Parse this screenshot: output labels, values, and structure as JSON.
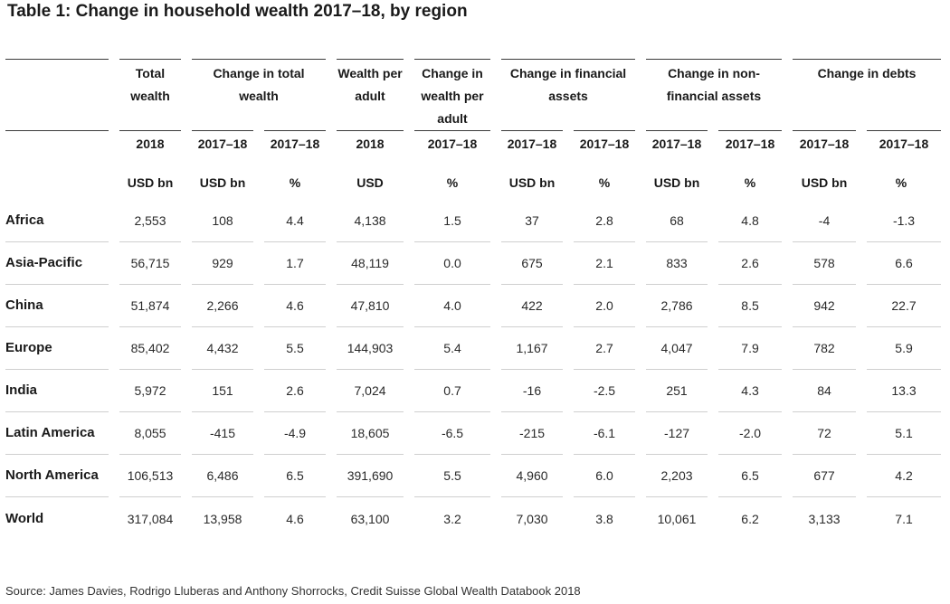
{
  "title": "Table 1: Change in household wealth 2017–18, by region",
  "group_headers": [
    "Total wealth",
    "Change in total wealth",
    "Wealth per adult",
    "Change in wealth per adult",
    "Change in financial assets",
    "Change in non-financial assets",
    "Change in debts"
  ],
  "years": [
    "2018",
    "2017–18",
    "2017–18",
    "2018",
    "2017–18",
    "2017–18",
    "2017–18",
    "2017–18",
    "2017–18",
    "2017–18",
    "2017–18"
  ],
  "units": [
    "USD bn",
    "USD bn",
    "%",
    "USD",
    "%",
    "USD bn",
    "%",
    "USD bn",
    "%",
    "USD bn",
    "%"
  ],
  "rows": [
    {
      "region": "Africa",
      "values": [
        "2,553",
        "108",
        "4.4",
        "4,138",
        "1.5",
        "37",
        "2.8",
        "68",
        "4.8",
        "-4",
        "-1.3"
      ]
    },
    {
      "region": "Asia-Pacific",
      "values": [
        "56,715",
        "929",
        "1.7",
        "48,119",
        "0.0",
        "675",
        "2.1",
        "833",
        "2.6",
        "578",
        "6.6"
      ]
    },
    {
      "region": "China",
      "values": [
        "51,874",
        "2,266",
        "4.6",
        "47,810",
        "4.0",
        "422",
        "2.0",
        "2,786",
        "8.5",
        "942",
        "22.7"
      ]
    },
    {
      "region": "Europe",
      "values": [
        "85,402",
        "4,432",
        "5.5",
        "144,903",
        "5.4",
        "1,167",
        "2.7",
        "4,047",
        "7.9",
        "782",
        "5.9"
      ]
    },
    {
      "region": "India",
      "values": [
        "5,972",
        "151",
        "2.6",
        "7,024",
        "0.7",
        "-16",
        "-2.5",
        "251",
        "4.3",
        "84",
        "13.3"
      ]
    },
    {
      "region": "Latin America",
      "values": [
        "8,055",
        "-415",
        "-4.9",
        "18,605",
        "-6.5",
        "-215",
        "-6.1",
        "-127",
        "-2.0",
        "72",
        "5.1"
      ]
    },
    {
      "region": "North America",
      "values": [
        "106,513",
        "6,486",
        "6.5",
        "391,690",
        "5.5",
        "4,960",
        "6.0",
        "2,203",
        "6.5",
        "677",
        "4.2"
      ]
    },
    {
      "region": "World",
      "values": [
        "317,084",
        "13,958",
        "4.6",
        "63,100",
        "3.2",
        "7,030",
        "3.8",
        "10,061",
        "6.2",
        "3,133",
        "7.1"
      ]
    }
  ],
  "source": "Source: James Davies, Rodrigo Lluberas and Anthony Shorrocks, Credit Suisse Global Wealth Databook 2018"
}
